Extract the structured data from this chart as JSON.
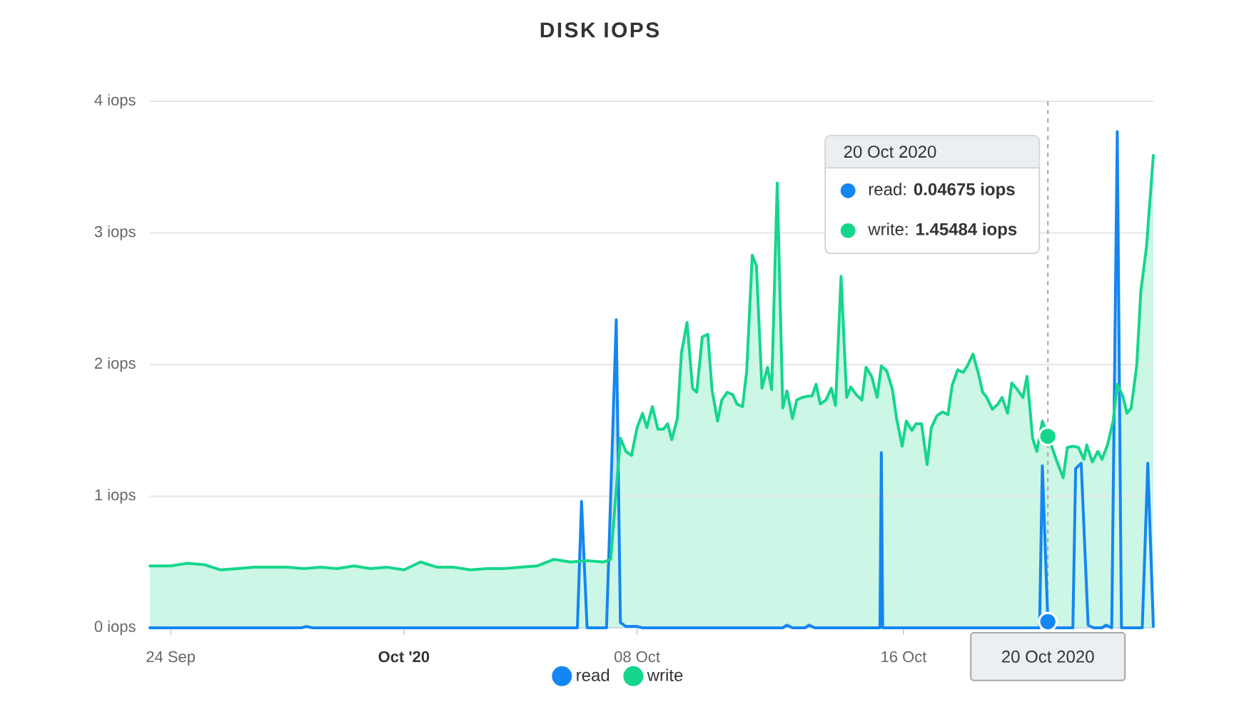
{
  "chart_data": {
    "type": "area",
    "title": "DISK IOPS",
    "xlim": [
      "2020-09-23T09:00",
      "2020-10-23T12:00"
    ],
    "xticks": [
      {
        "value": "2020-09-24",
        "label": "24 Sep"
      },
      {
        "value": "2020-10-01",
        "label": "Oct '20"
      },
      {
        "value": "2020-10-08",
        "label": "08 Oct"
      },
      {
        "value": "2020-10-16",
        "label": "16 Oct"
      }
    ],
    "ylim": [
      0,
      4
    ],
    "yticks": [
      {
        "value": 0,
        "label": "0 iops"
      },
      {
        "value": 1,
        "label": "1 iops"
      },
      {
        "value": 2,
        "label": "2 iops"
      },
      {
        "value": 3,
        "label": "3 iops"
      },
      {
        "value": 4,
        "label": "4 iops"
      }
    ],
    "grid": "y",
    "legend": "bottom",
    "marker": "none",
    "line_style": "solid",
    "series": [
      {
        "name": "read",
        "color": "#1386f2",
        "x": [
          "2020-09-23T09:00",
          "2020-09-27T22:00",
          "2020-09-28T02:00",
          "2020-09-28T06:00",
          "2020-10-06T05:00",
          "2020-10-06T08:00",
          "2020-10-06T12:00",
          "2020-10-07T02:00",
          "2020-10-07T09:00",
          "2020-10-07T12:00",
          "2020-10-07T16:00",
          "2020-10-08T00:00",
          "2020-10-08T04:00",
          "2020-10-12T09:00",
          "2020-10-12T12:00",
          "2020-10-12T16:00",
          "2020-10-13T01:00",
          "2020-10-13T04:00",
          "2020-10-13T08:00",
          "2020-10-15T07:00",
          "2020-10-15T08:00",
          "2020-10-15T09:00",
          "2020-10-20T02:00",
          "2020-10-20T04:00",
          "2020-10-20T08:00",
          "2020-10-20T11:00",
          "2020-10-21T02:00",
          "2020-10-21T04:00",
          "2020-10-21T08:00",
          "2020-10-21T13:00",
          "2020-10-21T17:00",
          "2020-10-21T23:00",
          "2020-10-22T02:00",
          "2020-10-22T06:00",
          "2020-10-22T10:00",
          "2020-10-22T13:00",
          "2020-10-23T04:00",
          "2020-10-23T08:00",
          "2020-10-23T12:00"
        ],
        "values": [
          0,
          0,
          0.01,
          0,
          0,
          0.96,
          0,
          0,
          2.34,
          0.04,
          0.01,
          0.01,
          0,
          0,
          0.02,
          0,
          0,
          0.02,
          0,
          0,
          1.33,
          0,
          0,
          1.23,
          0.04675,
          0,
          0,
          1.21,
          1.25,
          0.02,
          0,
          0,
          0.02,
          0,
          3.77,
          0,
          0,
          1.25,
          0.01
        ]
      },
      {
        "name": "write",
        "color": "#15d68c",
        "x": [
          "2020-09-23T09:00",
          "2020-09-24T00:00",
          "2020-09-24T12:00",
          "2020-09-25T00:00",
          "2020-09-25T12:00",
          "2020-09-26T00:00",
          "2020-09-26T12:00",
          "2020-09-27T00:00",
          "2020-09-27T12:00",
          "2020-09-28T00:00",
          "2020-09-28T12:00",
          "2020-09-29T00:00",
          "2020-09-29T12:00",
          "2020-09-30T00:00",
          "2020-09-30T12:00",
          "2020-10-01T00:00",
          "2020-10-01T12:00",
          "2020-10-02T00:00",
          "2020-10-02T12:00",
          "2020-10-03T00:00",
          "2020-10-03T12:00",
          "2020-10-04T00:00",
          "2020-10-04T12:00",
          "2020-10-05T00:00",
          "2020-10-05T12:00",
          "2020-10-06T00:00",
          "2020-10-06T12:00",
          "2020-10-07T00:00",
          "2020-10-07T05:00",
          "2020-10-07T12:00",
          "2020-10-07T16:00",
          "2020-10-07T20:00",
          "2020-10-08T00:00",
          "2020-10-08T04:00",
          "2020-10-08T07:00",
          "2020-10-08T11:00",
          "2020-10-08T15:00",
          "2020-10-08T19:00",
          "2020-10-08T22:00",
          "2020-10-09T01:00",
          "2020-10-09T05:00",
          "2020-10-09T08:00",
          "2020-10-09T12:00",
          "2020-10-09T16:00",
          "2020-10-09T19:00",
          "2020-10-09T23:00",
          "2020-10-10T03:00",
          "2020-10-10T06:00",
          "2020-10-10T10:00",
          "2020-10-10T13:00",
          "2020-10-10T17:00",
          "2020-10-10T21:00",
          "2020-10-11T00:00",
          "2020-10-11T04:00",
          "2020-10-11T07:00",
          "2020-10-11T11:00",
          "2020-10-11T14:00",
          "2020-10-11T18:00",
          "2020-10-11T22:00",
          "2020-10-12T01:00",
          "2020-10-12T05:00",
          "2020-10-12T09:00",
          "2020-10-12T12:00",
          "2020-10-12T16:00",
          "2020-10-12T19:00",
          "2020-10-12T23:00",
          "2020-10-13T03:00",
          "2020-10-13T06:00",
          "2020-10-13T09:00",
          "2020-10-13T12:00",
          "2020-10-13T16:00",
          "2020-10-13T20:00",
          "2020-10-13T23:00",
          "2020-10-14T03:00",
          "2020-10-14T07:00",
          "2020-10-14T10:00",
          "2020-10-14T14:00",
          "2020-10-14T18:00",
          "2020-10-14T21:00",
          "2020-10-15T01:00",
          "2020-10-15T05:00",
          "2020-10-15T08:00",
          "2020-10-15T12:00",
          "2020-10-15T16:00",
          "2020-10-15T19:00",
          "2020-10-15T23:00",
          "2020-10-16T02:00",
          "2020-10-16T06:00",
          "2020-10-16T09:00",
          "2020-10-16T13:00",
          "2020-10-16T17:00",
          "2020-10-16T20:00",
          "2020-10-17T00:00",
          "2020-10-17T04:00",
          "2020-10-17T08:00",
          "2020-10-17T11:00",
          "2020-10-17T15:00",
          "2020-10-17T19:00",
          "2020-10-17T22:00",
          "2020-10-18T02:00",
          "2020-10-18T06:00",
          "2020-10-18T09:00",
          "2020-10-18T12:00",
          "2020-10-18T16:00",
          "2020-10-18T20:00",
          "2020-10-18T23:00",
          "2020-10-19T03:00",
          "2020-10-19T06:00",
          "2020-10-19T10:00",
          "2020-10-19T14:00",
          "2020-10-19T17:00",
          "2020-10-19T21:00",
          "2020-10-20T00:00",
          "2020-10-20T04:00",
          "2020-10-20T08:00",
          "2020-10-20T11:00",
          "2020-10-20T15:00",
          "2020-10-20T19:00",
          "2020-10-20T22:00",
          "2020-10-21T02:00",
          "2020-10-21T06:00",
          "2020-10-21T10:00",
          "2020-10-21T12:00",
          "2020-10-21T16:00",
          "2020-10-21T20:00",
          "2020-10-21T23:00",
          "2020-10-22T03:00",
          "2020-10-22T07:00",
          "2020-10-22T10:00",
          "2020-10-22T14:00",
          "2020-10-22T17:00",
          "2020-10-22T20:00",
          "2020-10-23T00:00",
          "2020-10-23T03:00",
          "2020-10-23T07:00",
          "2020-10-23T12:00"
        ],
        "values": [
          0.47,
          0.47,
          0.49,
          0.48,
          0.44,
          0.45,
          0.46,
          0.46,
          0.46,
          0.45,
          0.46,
          0.45,
          0.47,
          0.45,
          0.46,
          0.44,
          0.5,
          0.46,
          0.46,
          0.44,
          0.45,
          0.45,
          0.46,
          0.47,
          0.52,
          0.5,
          0.51,
          0.5,
          0.52,
          1.44,
          1.34,
          1.31,
          1.52,
          1.63,
          1.52,
          1.68,
          1.51,
          1.51,
          1.55,
          1.43,
          1.59,
          2.09,
          2.32,
          1.82,
          1.79,
          2.21,
          2.23,
          1.81,
          1.57,
          1.73,
          1.79,
          1.77,
          1.7,
          1.68,
          1.95,
          2.83,
          2.75,
          1.82,
          1.98,
          1.81,
          3.38,
          1.67,
          1.8,
          1.59,
          1.73,
          1.75,
          1.76,
          1.76,
          1.85,
          1.7,
          1.73,
          1.82,
          1.69,
          2.67,
          1.75,
          1.83,
          1.77,
          1.73,
          1.98,
          1.91,
          1.75,
          1.99,
          1.95,
          1.81,
          1.59,
          1.38,
          1.57,
          1.5,
          1.55,
          1.55,
          1.24,
          1.52,
          1.61,
          1.64,
          1.62,
          1.84,
          1.96,
          1.94,
          1.99,
          2.08,
          1.93,
          1.79,
          1.75,
          1.66,
          1.7,
          1.75,
          1.63,
          1.86,
          1.81,
          1.75,
          1.91,
          1.44,
          1.34,
          1.57,
          1.45484,
          1.37,
          1.25,
          1.14,
          1.37,
          1.38,
          1.37,
          1.28,
          1.39,
          1.26,
          1.34,
          1.28,
          1.39,
          1.57,
          1.85,
          1.76,
          1.63,
          1.67,
          1.99,
          2.56,
          2.89,
          3.59
        ]
      }
    ],
    "ref_lines": [
      {
        "axis": "x",
        "value": "2020-10-20T08:00",
        "label": "20 Oct 2020",
        "color": "#a6a6a6",
        "line_style": "dashed"
      }
    ],
    "annotations": [
      "20 Oct 2020",
      "read: **0.04675 iops**",
      "write: **1.45484 iops**"
    ]
  }
}
